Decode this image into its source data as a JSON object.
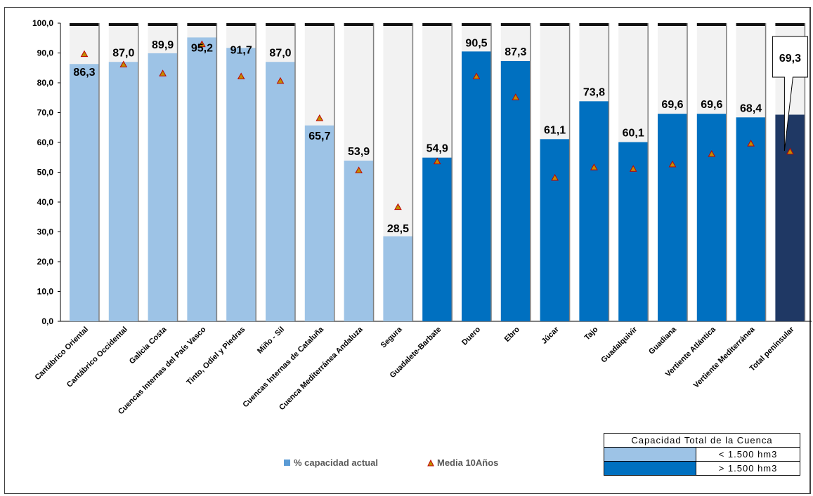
{
  "chart_data": {
    "type": "bar",
    "categories": [
      "Cantábrico Oriental",
      "Cantábrico Occidental",
      "Galicia Costa",
      "Cuencas Internas del País Vasco",
      "Tinto, Odiel y Piedras",
      "Miño - Sil",
      "Cuencas Internas de Cataluña",
      "Cuenca Mediterránea Andaluza",
      "Segura",
      "Guadalete-Barbate",
      "Duero",
      "Ebro",
      "Júcar",
      "Tajo",
      "Guadalquivir",
      "Guadiana",
      "Vertiente Atlántica",
      "Vertiente Mediterránea",
      "Total peninsular"
    ],
    "series": [
      {
        "name": "% capacidad actual",
        "values": [
          86.3,
          87.0,
          89.9,
          95.2,
          91.7,
          87.0,
          65.7,
          53.9,
          28.5,
          54.9,
          90.5,
          87.3,
          61.1,
          73.8,
          60.1,
          69.6,
          69.6,
          68.4,
          69.3
        ]
      },
      {
        "name": "Media 10Años",
        "values": [
          89.5,
          86.0,
          83.0,
          92.8,
          82.0,
          80.5,
          68.0,
          50.5,
          38.2,
          53.5,
          82.0,
          75.0,
          48.0,
          51.5,
          51.0,
          52.5,
          56.0,
          59.5,
          56.8
        ]
      }
    ],
    "data_labels": [
      "86,3",
      "87,0",
      "89,9",
      "95,2",
      "91,7",
      "87,0",
      "65,7",
      "53,9",
      "28,5",
      "54,9",
      "90,5",
      "87,3",
      "61,1",
      "73,8",
      "60,1",
      "69,6",
      "69,6",
      "68,4",
      "69,3"
    ],
    "bar_groups": [
      "small",
      "small",
      "small",
      "small",
      "small",
      "small",
      "small",
      "small",
      "small",
      "large",
      "large",
      "large",
      "large",
      "large",
      "large",
      "large",
      "large",
      "large",
      "total"
    ],
    "yticks": [
      "0,0",
      "10,0",
      "20,0",
      "30,0",
      "40,0",
      "50,0",
      "60,0",
      "70,0",
      "80,0",
      "90,0",
      "100,0"
    ],
    "ylim": [
      0,
      100
    ],
    "grid": false,
    "legend_position": "bottom",
    "colors": {
      "small": "#9dc3e6",
      "large": "#0070c0",
      "total": "#1f3864",
      "remaining": "#f2f2f2",
      "marker": "#c00000",
      "marker_fill": "#bf8f00",
      "legend_square": "#5b9bd5"
    }
  },
  "legend": {
    "bar_label": "% capacidad actual",
    "marker_label": "Media 10Años"
  },
  "capacity_table": {
    "title": "Capacidad Total de la Cuenca",
    "rows": [
      {
        "label": "< 1.500 hm3",
        "color": "#9dc3e6"
      },
      {
        "label": "> 1.500 hm3",
        "color": "#0070c0"
      }
    ]
  }
}
